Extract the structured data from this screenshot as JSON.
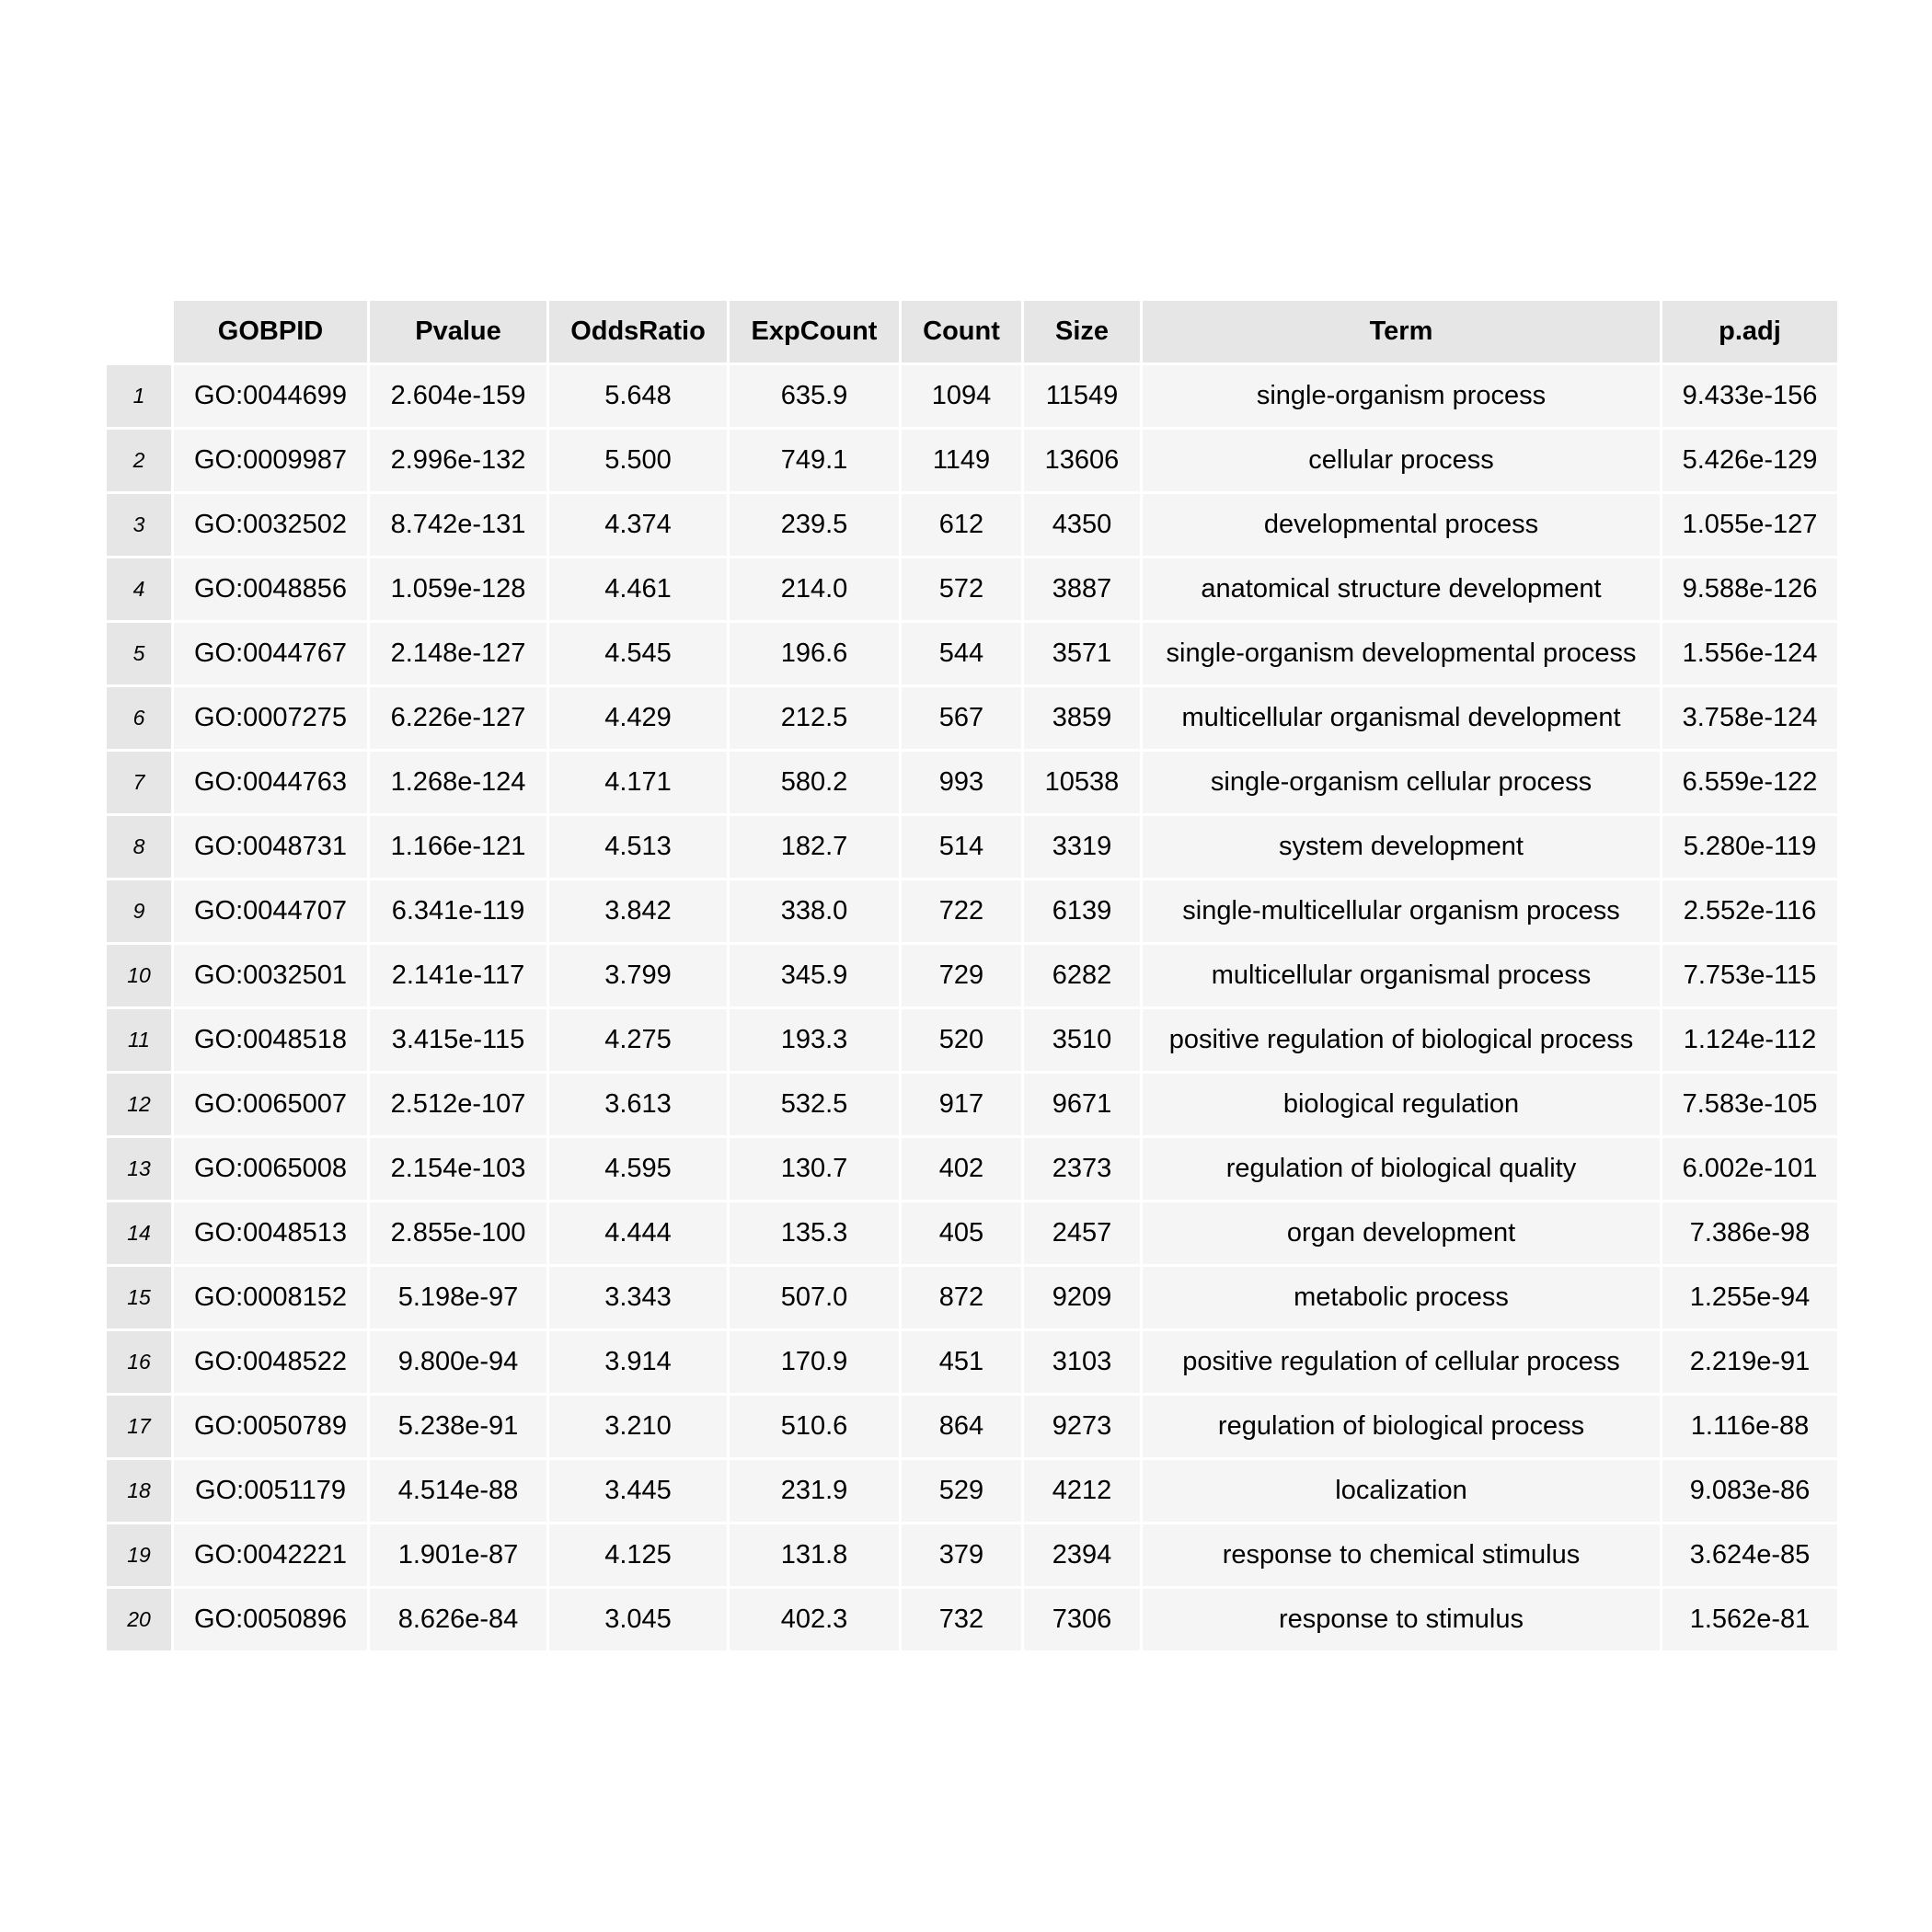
{
  "chart_data": {
    "type": "table",
    "columns": [
      "GOBPID",
      "Pvalue",
      "OddsRatio",
      "ExpCount",
      "Count",
      "Size",
      "Term",
      "p.adj"
    ],
    "row_labels": [
      "1",
      "2",
      "3",
      "4",
      "5",
      "6",
      "7",
      "8",
      "9",
      "10",
      "11",
      "12",
      "13",
      "14",
      "15",
      "16",
      "17",
      "18",
      "19",
      "20"
    ],
    "rows": [
      [
        "GO:0044699",
        "2.604e-159",
        "5.648",
        "635.9",
        "1094",
        "11549",
        "single-organism process",
        "9.433e-156"
      ],
      [
        "GO:0009987",
        "2.996e-132",
        "5.500",
        "749.1",
        "1149",
        "13606",
        "cellular process",
        "5.426e-129"
      ],
      [
        "GO:0032502",
        "8.742e-131",
        "4.374",
        "239.5",
        "612",
        "4350",
        "developmental process",
        "1.055e-127"
      ],
      [
        "GO:0048856",
        "1.059e-128",
        "4.461",
        "214.0",
        "572",
        "3887",
        "anatomical structure development",
        "9.588e-126"
      ],
      [
        "GO:0044767",
        "2.148e-127",
        "4.545",
        "196.6",
        "544",
        "3571",
        "single-organism developmental process",
        "1.556e-124"
      ],
      [
        "GO:0007275",
        "6.226e-127",
        "4.429",
        "212.5",
        "567",
        "3859",
        "multicellular organismal development",
        "3.758e-124"
      ],
      [
        "GO:0044763",
        "1.268e-124",
        "4.171",
        "580.2",
        "993",
        "10538",
        "single-organism cellular process",
        "6.559e-122"
      ],
      [
        "GO:0048731",
        "1.166e-121",
        "4.513",
        "182.7",
        "514",
        "3319",
        "system development",
        "5.280e-119"
      ],
      [
        "GO:0044707",
        "6.341e-119",
        "3.842",
        "338.0",
        "722",
        "6139",
        "single-multicellular organism process",
        "2.552e-116"
      ],
      [
        "GO:0032501",
        "2.141e-117",
        "3.799",
        "345.9",
        "729",
        "6282",
        "multicellular organismal process",
        "7.753e-115"
      ],
      [
        "GO:0048518",
        "3.415e-115",
        "4.275",
        "193.3",
        "520",
        "3510",
        "positive regulation of biological process",
        "1.124e-112"
      ],
      [
        "GO:0065007",
        "2.512e-107",
        "3.613",
        "532.5",
        "917",
        "9671",
        "biological regulation",
        "7.583e-105"
      ],
      [
        "GO:0065008",
        "2.154e-103",
        "4.595",
        "130.7",
        "402",
        "2373",
        "regulation of biological quality",
        "6.002e-101"
      ],
      [
        "GO:0048513",
        "2.855e-100",
        "4.444",
        "135.3",
        "405",
        "2457",
        "organ development",
        "7.386e-98"
      ],
      [
        "GO:0008152",
        "5.198e-97",
        "3.343",
        "507.0",
        "872",
        "9209",
        "metabolic process",
        "1.255e-94"
      ],
      [
        "GO:0048522",
        "9.800e-94",
        "3.914",
        "170.9",
        "451",
        "3103",
        "positive regulation of cellular process",
        "2.219e-91"
      ],
      [
        "GO:0050789",
        "5.238e-91",
        "3.210",
        "510.6",
        "864",
        "9273",
        "regulation of biological process",
        "1.116e-88"
      ],
      [
        "GO:0051179",
        "4.514e-88",
        "3.445",
        "231.9",
        "529",
        "4212",
        "localization",
        "9.083e-86"
      ],
      [
        "GO:0042221",
        "1.901e-87",
        "4.125",
        "131.8",
        "379",
        "2394",
        "response to chemical stimulus",
        "3.624e-85"
      ],
      [
        "GO:0050896",
        "8.626e-84",
        "3.045",
        "402.3",
        "732",
        "7306",
        "response to stimulus",
        "1.562e-81"
      ]
    ]
  }
}
